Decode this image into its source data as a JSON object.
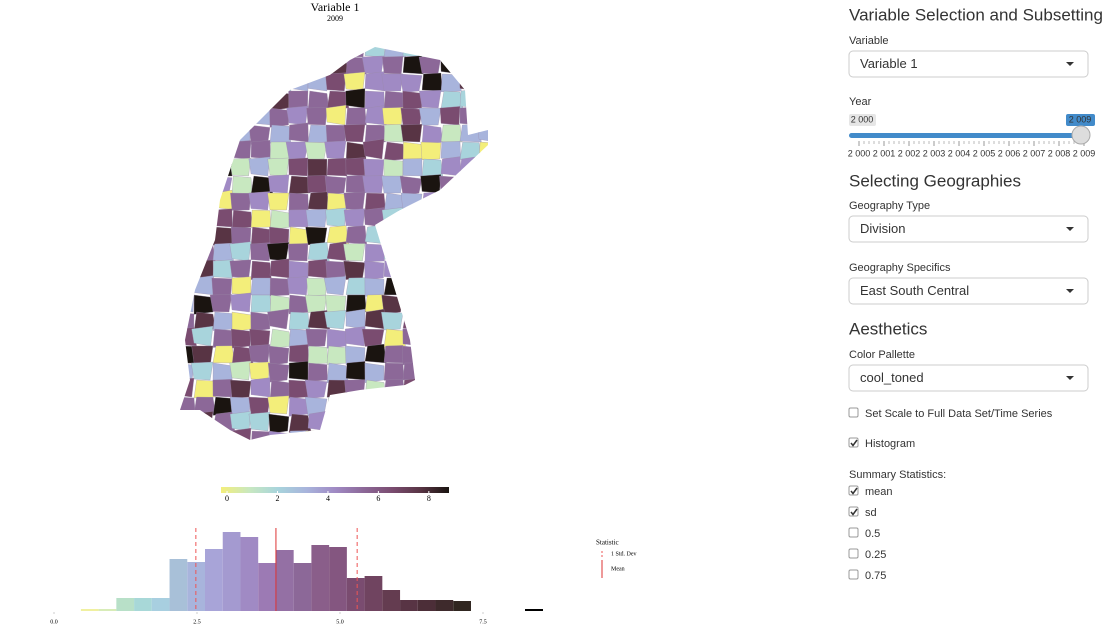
{
  "map": {
    "title": "Variable 1",
    "subtitle": "2009",
    "colorbar": {
      "xlim": [
        -0.24,
        8.8
      ],
      "ticks": [
        0,
        2,
        4,
        6,
        8
      ],
      "colors": [
        "#f3ee7a",
        "#c8e8c0",
        "#a8d4dc",
        "#a8b4dc",
        "#a08ac4",
        "#8c6898",
        "#7a4c70",
        "#583444",
        "#1a1410"
      ]
    }
  },
  "chart_data": {
    "type": "histogram",
    "bins": [
      0.47,
      0.78,
      1.09,
      1.4,
      1.71,
      2.02,
      2.33,
      2.64,
      2.95,
      3.26,
      3.57,
      3.88,
      4.19,
      4.5,
      4.81,
      5.12,
      5.43,
      5.74,
      6.05,
      6.36,
      6.67,
      6.98,
      7.29
    ],
    "counts": [
      2,
      2,
      13,
      13,
      13,
      52,
      49,
      62,
      79,
      74,
      48,
      61,
      48,
      66,
      64,
      33,
      35,
      21,
      11,
      11,
      11,
      10
    ],
    "colors": [
      "#f0f0a0",
      "#d8ecb8",
      "#b8e0c8",
      "#a8d8d8",
      "#a8cfe0",
      "#a8c0d8",
      "#a8b4dc",
      "#a8a4d8",
      "#a49ad0",
      "#a08ac4",
      "#9c7ab4",
      "#9470a4",
      "#8c6898",
      "#8a5e8a",
      "#845680",
      "#7a4c70",
      "#704460",
      "#643c50",
      "#583444",
      "#4c2e38",
      "#3e2a2c",
      "#302620"
    ],
    "xlim": [
      0,
      7.5
    ],
    "ylim": [
      0,
      90
    ],
    "xticks": [
      {
        "value": 0,
        "label": "0.0"
      },
      2.5,
      {
        "value": 5,
        "label": "5.0"
      },
      7.5
    ],
    "mean": 3.88,
    "sd_lines": [
      2.48,
      5.3
    ],
    "legend": {
      "title": "Statistic",
      "entries": [
        "1 Std. Dev",
        "Mean"
      ]
    }
  },
  "sidebar": {
    "section1": "Variable Selection and Subsetting",
    "variable": {
      "label": "Variable",
      "value": "Variable 1"
    },
    "year": {
      "label": "Year",
      "min_label": "2 000",
      "value_label": "2 009",
      "ticks": [
        "2 000",
        "2 001",
        "2 002",
        "2 003",
        "2 004",
        "2 005",
        "2 006",
        "2 007",
        "2 008",
        "2 009"
      ]
    },
    "section2": "Selecting Geographies",
    "geo_type": {
      "label": "Geography Type",
      "value": "Division"
    },
    "geo_specifics": {
      "label": "Geography Specifics",
      "value": "East South Central"
    },
    "section3": "Aesthetics",
    "palette": {
      "label": "Color Pallette",
      "value": "cool_toned"
    },
    "options": [
      {
        "label": "Set Scale to Full Data Set/Time Series",
        "checked": false
      },
      {
        "label": "Histogram",
        "checked": true
      }
    ],
    "stats_label": "Summary Statistics:",
    "stats": [
      {
        "label": "mean",
        "checked": true
      },
      {
        "label": "sd",
        "checked": true
      },
      {
        "label": "0.5",
        "checked": false
      },
      {
        "label": "0.25",
        "checked": false
      },
      {
        "label": "0.75",
        "checked": false
      }
    ]
  }
}
